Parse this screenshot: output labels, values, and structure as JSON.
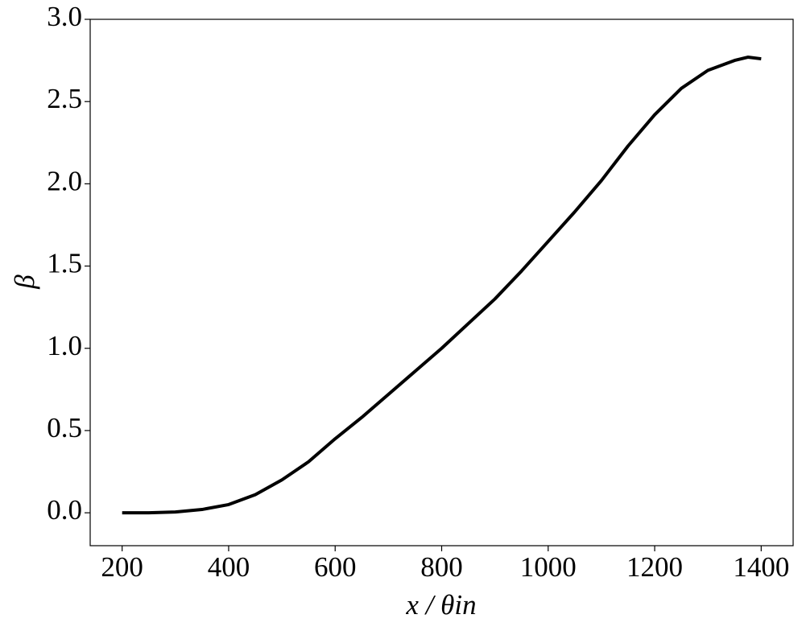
{
  "chart_data": {
    "type": "line",
    "xlabel": "x / θin",
    "ylabel": "β",
    "x": [
      200,
      250,
      300,
      350,
      400,
      450,
      500,
      550,
      600,
      650,
      700,
      750,
      800,
      850,
      900,
      950,
      1000,
      1050,
      1100,
      1150,
      1200,
      1250,
      1300,
      1350,
      1375,
      1400
    ],
    "series": [
      {
        "name": "β",
        "color": "#000000",
        "values": [
          0.0,
          0.0,
          0.005,
          0.02,
          0.05,
          0.11,
          0.2,
          0.31,
          0.45,
          0.58,
          0.72,
          0.86,
          1.0,
          1.15,
          1.3,
          1.47,
          1.65,
          1.83,
          2.02,
          2.23,
          2.42,
          2.58,
          2.69,
          2.75,
          2.77,
          2.76
        ]
      }
    ],
    "xlim": [
      140,
      1460
    ],
    "ylim": [
      -0.2,
      3.0
    ],
    "xticks": [
      200,
      400,
      600,
      800,
      1000,
      1200,
      1400
    ],
    "yticks": [
      {
        "value": 0,
        "label": "0.0"
      },
      0.5,
      {
        "value": 1,
        "label": "1.0"
      },
      1.5,
      {
        "value": 2,
        "label": "2.0"
      },
      2.5,
      {
        "value": 3,
        "label": "3.0"
      }
    ]
  }
}
